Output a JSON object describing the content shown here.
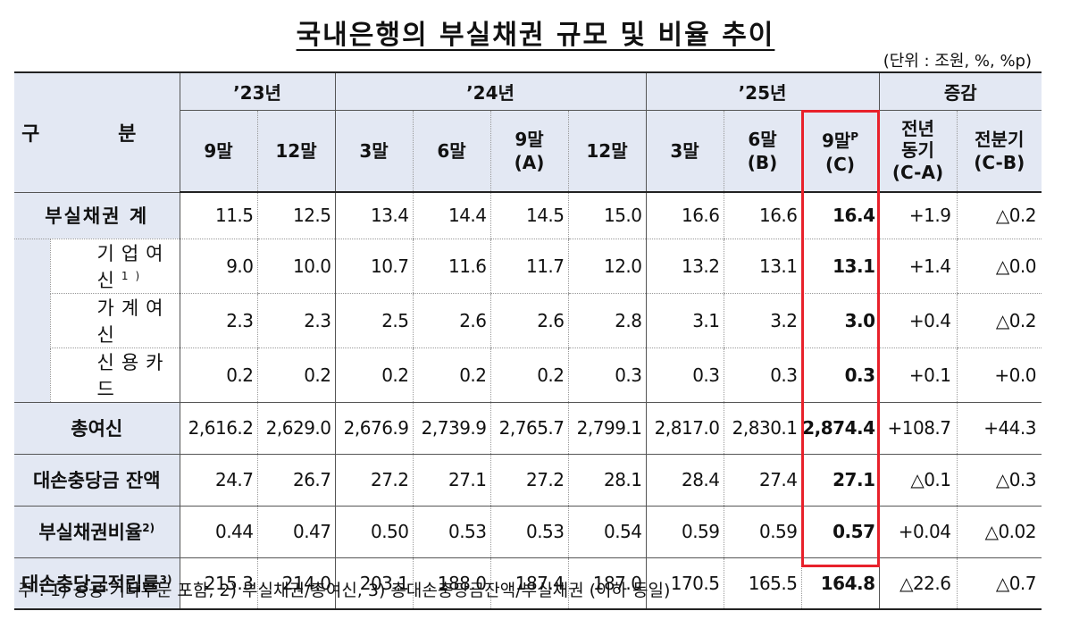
{
  "title": "국내은행의 부실채권 규모 및 비율 추이",
  "unit_note": "(단위 : 조원, %, %p)",
  "header": {
    "row_label": "구 분",
    "years": [
      "’23년",
      "’24년",
      "’25년",
      "증감"
    ],
    "columns": [
      {
        "label": "9말",
        "sub": ""
      },
      {
        "label": "12말",
        "sub": ""
      },
      {
        "label": "3말",
        "sub": ""
      },
      {
        "label": "6말",
        "sub": ""
      },
      {
        "label": "9말",
        "sub": "(A)"
      },
      {
        "label": "12말",
        "sub": ""
      },
      {
        "label": "3말",
        "sub": ""
      },
      {
        "label": "6말",
        "sub": "(B)"
      },
      {
        "label": "9말",
        "sup": "P",
        "sub": "(C)"
      },
      {
        "label": "전년 동기",
        "sub": "(C-A)"
      },
      {
        "label": "전분기",
        "sub": "(C-B)"
      }
    ]
  },
  "rows": [
    {
      "label": "부실채권 계",
      "values": [
        "11.5",
        "12.5",
        "13.4",
        "14.4",
        "14.5",
        "15.0",
        "16.6",
        "16.6",
        "16.4",
        "+1.9",
        "△0.2"
      ]
    },
    {
      "label": "기업여신",
      "sup": "1)",
      "values": [
        "9.0",
        "10.0",
        "10.7",
        "11.6",
        "11.7",
        "12.0",
        "13.2",
        "13.1",
        "13.1",
        "+1.4",
        "△0.0"
      ]
    },
    {
      "label": "가계여신",
      "values": [
        "2.3",
        "2.3",
        "2.5",
        "2.6",
        "2.6",
        "2.8",
        "3.1",
        "3.2",
        "3.0",
        "+0.4",
        "△0.2"
      ]
    },
    {
      "label": "신용카드",
      "values": [
        "0.2",
        "0.2",
        "0.2",
        "0.2",
        "0.2",
        "0.3",
        "0.3",
        "0.3",
        "0.3",
        "+0.1",
        "+0.0"
      ]
    },
    {
      "label": "총여신",
      "values": [
        "2,616.2",
        "2,629.0",
        "2,676.9",
        "2,739.9",
        "2,765.7",
        "2,799.1",
        "2,817.0",
        "2,830.1",
        "2,874.4",
        "+108.7",
        "+44.3"
      ]
    },
    {
      "label": "대손충당금 잔액",
      "values": [
        "24.7",
        "26.7",
        "27.2",
        "27.1",
        "27.2",
        "28.1",
        "28.4",
        "27.4",
        "27.1",
        "△0.1",
        "△0.3"
      ]
    },
    {
      "label": "부실채권비율",
      "sup": "2)",
      "values": [
        "0.44",
        "0.47",
        "0.50",
        "0.53",
        "0.53",
        "0.54",
        "0.59",
        "0.59",
        "0.57",
        "+0.04",
        "△0.02"
      ]
    },
    {
      "label": "대손충당금적립률",
      "sup": "3)",
      "values": [
        "215.3",
        "214.0",
        "203.1",
        "188.0",
        "187.4",
        "187.0",
        "170.5",
        "165.5",
        "164.8",
        "△22.6",
        "△0.7"
      ]
    }
  ],
  "footnote": "주 : 1) 공공·기타부문 포함,   2) 부실채권/총여신,   3) 총대손충당금잔액/부실채권 (이하 동일)",
  "colors": {
    "header_bg": "#e3e8f3",
    "highlight_box": "#e8212b"
  }
}
